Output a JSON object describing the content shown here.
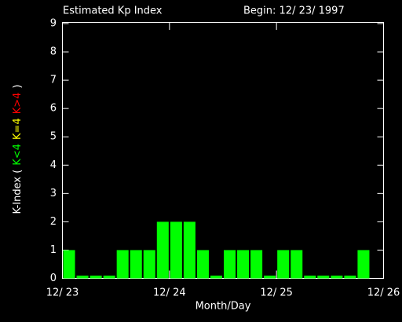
{
  "chart_data": {
    "type": "bar",
    "title": "Estimated Kp Index",
    "subtitle": "Begin: 12/ 23/ 1997",
    "x_label": "Month/Day",
    "y_label_parts": [
      {
        "text": "K-Index (",
        "color": "#ffffff"
      },
      {
        "text": "K<4",
        "color": "#00ff00"
      },
      {
        "text": "K=4",
        "color": "#ffff00"
      },
      {
        "text": "K>4",
        "color": "#ff0000"
      },
      {
        "text": ")",
        "color": "#ffffff"
      }
    ],
    "values": [
      1,
      0.1,
      0.1,
      0.1,
      1,
      1,
      1,
      2,
      2,
      2,
      1,
      0.1,
      1,
      1,
      1,
      0.1,
      1,
      1,
      0.1,
      0.1,
      0.1,
      0.1,
      1,
      null
    ],
    "color": "#00ff00",
    "xlim": [
      0,
      24
    ],
    "xticks": [
      {
        "value": 0,
        "label": "12/ 23"
      },
      {
        "value": 8,
        "label": "12/ 24"
      },
      {
        "value": 16,
        "label": "12/ 25"
      },
      {
        "value": 24,
        "label": "12/ 26"
      }
    ],
    "ylim": [
      0,
      9
    ],
    "yticks": [
      0,
      1,
      2,
      3,
      4,
      5,
      6,
      7,
      8,
      9
    ]
  }
}
